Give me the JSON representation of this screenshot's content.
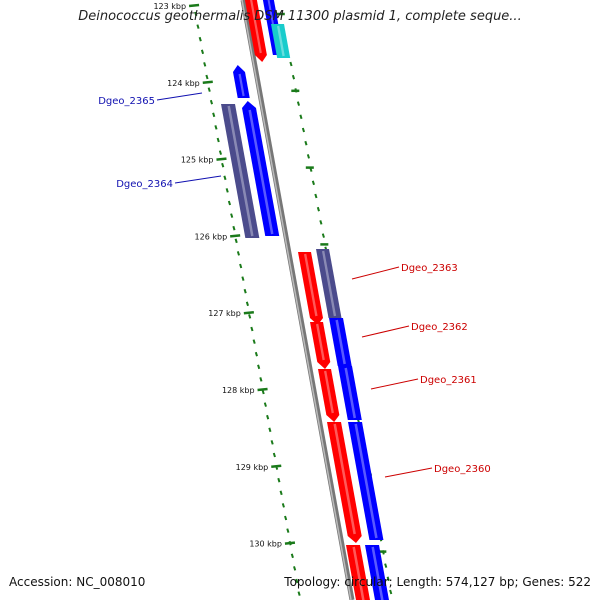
{
  "title": "Deinococcus geothermalis DSM 11300 plasmid 1, complete seque...",
  "footer": {
    "accession": "Accession: NC_008010",
    "summary": "Topology: circular; Length: 574,127 bp; Genes: 522"
  },
  "colors": {
    "backbone": "#888888",
    "forward_cds": "#ff0000",
    "reverse_cds": "#0000ff",
    "other_gene": "#4b4b8c",
    "teal_gene": "#19cccc",
    "tick": "#1a7a1a",
    "label_left": "#1010b0",
    "label_right": "#cc0000"
  },
  "ticks": [
    {
      "label": "123 kbp",
      "kbp": 123
    },
    {
      "label": "124 kbp",
      "kbp": 124
    },
    {
      "label": "125 kbp",
      "kbp": 125
    },
    {
      "label": "126 kbp",
      "kbp": 126
    },
    {
      "label": "127 kbp",
      "kbp": 127
    },
    {
      "label": "128 kbp",
      "kbp": 128
    },
    {
      "label": "129 kbp",
      "kbp": 129
    },
    {
      "label": "130 kbp",
      "kbp": 130
    }
  ],
  "gene_labels": [
    {
      "name": "Dgeo_2365",
      "side": "left"
    },
    {
      "name": "Dgeo_2364",
      "side": "left"
    },
    {
      "name": "Dgeo_2363",
      "side": "right"
    },
    {
      "name": "Dgeo_2362",
      "side": "right"
    },
    {
      "name": "Dgeo_2361",
      "side": "right"
    },
    {
      "name": "Dgeo_2360",
      "side": "right"
    }
  ]
}
